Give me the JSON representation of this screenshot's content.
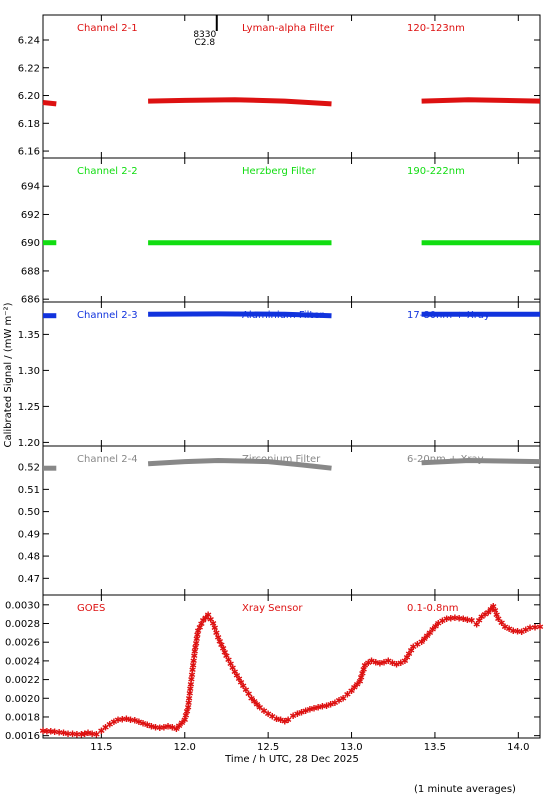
{
  "chart_data": {
    "type": "scatter",
    "x_axis": {
      "label": "Time / h UTC, 28 Dec 2025",
      "range": [
        11.15,
        14.13
      ],
      "ticks": [
        11.5,
        12.0,
        12.5,
        13.0,
        13.5,
        14.0
      ],
      "tick_labels": [
        "11.5",
        "12.0",
        "12.5",
        "13.0",
        "13.5",
        "14.0"
      ]
    },
    "shared_ylabel": "Calibrated Signal / (mW m⁻²)",
    "footnote": "(1 minute averages)",
    "marker_annotation": {
      "x": 12.12,
      "lines": [
        "8330",
        "C2.8"
      ]
    },
    "panels": [
      {
        "id": "ch2-1",
        "labels": [
          "Channel 2-1",
          "Lyman-alpha Filter",
          "120-123nm"
        ],
        "color": "#dd1111",
        "ylim": [
          6.155,
          6.258
        ],
        "yticks": [
          6.16,
          6.18,
          6.2,
          6.22,
          6.24
        ],
        "ytick_labels": [
          "6.16",
          "6.18",
          "6.20",
          "6.22",
          "6.24"
        ],
        "segments": [
          [
            [
              11.15,
              6.195
            ],
            [
              11.23,
              6.194
            ]
          ],
          [
            [
              11.78,
              6.196
            ],
            [
              12.0,
              6.1965
            ],
            [
              12.3,
              6.197
            ],
            [
              12.6,
              6.196
            ],
            [
              12.88,
              6.194
            ]
          ],
          [
            [
              13.42,
              6.196
            ],
            [
              13.7,
              6.197
            ],
            [
              14.13,
              6.196
            ]
          ]
        ]
      },
      {
        "id": "ch2-2",
        "labels": [
          "Channel 2-2",
          "Herzberg Filter",
          "190-222nm"
        ],
        "color": "#11dd11",
        "ylim": [
          685.8,
          696.0
        ],
        "yticks": [
          686,
          688,
          690,
          692,
          694
        ],
        "ytick_labels": [
          "686",
          "688",
          "690",
          "692",
          "694"
        ],
        "segments": [
          [
            [
              11.15,
              690.0
            ],
            [
              11.23,
              690.0
            ]
          ],
          [
            [
              11.78,
              690.0
            ],
            [
              12.88,
              690.0
            ]
          ],
          [
            [
              13.42,
              690.0
            ],
            [
              14.13,
              690.0
            ]
          ]
        ]
      },
      {
        "id": "ch2-3",
        "labels": [
          "Channel 2-3",
          "Aluminium Filter",
          "17-80nm + Xray"
        ],
        "color": "#1133dd",
        "ylim": [
          1.195,
          1.395
        ],
        "yticks": [
          1.2,
          1.25,
          1.3,
          1.35
        ],
        "ytick_labels": [
          "1.20",
          "1.25",
          "1.30",
          "1.35"
        ],
        "segments": [
          [
            [
              11.15,
              1.376
            ],
            [
              11.23,
              1.376
            ]
          ],
          [
            [
              11.78,
              1.378
            ],
            [
              12.2,
              1.3785
            ],
            [
              12.6,
              1.378
            ],
            [
              12.88,
              1.376
            ]
          ],
          [
            [
              13.42,
              1.378
            ],
            [
              14.13,
              1.378
            ]
          ]
        ]
      },
      {
        "id": "ch2-4",
        "labels": [
          "Channel 2-4",
          "Zirconium Filter",
          "6-20nm + Xray"
        ],
        "color": "#888888",
        "ylim": [
          0.4625,
          0.5295
        ],
        "yticks": [
          0.47,
          0.48,
          0.49,
          0.5,
          0.51,
          0.52
        ],
        "ytick_labels": [
          "0.47",
          "0.48",
          "0.49",
          "0.50",
          "0.51",
          "0.52"
        ],
        "segments": [
          [
            [
              11.15,
              0.5195
            ],
            [
              11.23,
              0.5195
            ]
          ],
          [
            [
              11.78,
              0.5215
            ],
            [
              12.0,
              0.5225
            ],
            [
              12.2,
              0.523
            ],
            [
              12.5,
              0.5225
            ],
            [
              12.7,
              0.521
            ],
            [
              12.88,
              0.5195
            ]
          ],
          [
            [
              13.42,
              0.522
            ],
            [
              13.7,
              0.523
            ],
            [
              14.13,
              0.5225
            ]
          ]
        ]
      },
      {
        "id": "goes",
        "labels": [
          "GOES",
          "Xray Sensor",
          "0.1-0.8nm"
        ],
        "color": "#dd1111",
        "ylim": [
          0.001575,
          0.003105
        ],
        "yticks": [
          0.0016,
          0.0018,
          0.002,
          0.0022,
          0.0024,
          0.0026,
          0.0028,
          0.003
        ],
        "ytick_labels": [
          "0.0016",
          "0.0018",
          "0.0020",
          "0.0022",
          "0.0024",
          "0.0026",
          "0.0028",
          "0.0030"
        ],
        "series": [
          [
            11.15,
            0.00165
          ],
          [
            11.22,
            0.00164
          ],
          [
            11.3,
            0.00162
          ],
          [
            11.38,
            0.00161
          ],
          [
            11.42,
            0.00163
          ],
          [
            11.47,
            0.00161
          ],
          [
            11.5,
            0.00165
          ],
          [
            11.55,
            0.00172
          ],
          [
            11.6,
            0.00177
          ],
          [
            11.65,
            0.00178
          ],
          [
            11.7,
            0.00176
          ],
          [
            11.75,
            0.00173
          ],
          [
            11.8,
            0.0017
          ],
          [
            11.85,
            0.00168
          ],
          [
            11.9,
            0.0017
          ],
          [
            11.95,
            0.00167
          ],
          [
            12.0,
            0.00177
          ],
          [
            12.02,
            0.0019
          ],
          [
            12.04,
            0.0022
          ],
          [
            12.06,
            0.0025
          ],
          [
            12.08,
            0.00272
          ],
          [
            12.11,
            0.00283
          ],
          [
            12.14,
            0.00289
          ],
          [
            12.17,
            0.0028
          ],
          [
            12.2,
            0.00265
          ],
          [
            12.25,
            0.00245
          ],
          [
            12.3,
            0.00228
          ],
          [
            12.35,
            0.00213
          ],
          [
            12.4,
            0.002
          ],
          [
            12.45,
            0.0019
          ],
          [
            12.5,
            0.00183
          ],
          [
            12.55,
            0.00178
          ],
          [
            12.6,
            0.00175
          ],
          [
            12.62,
            0.00177
          ],
          [
            12.65,
            0.00181
          ],
          [
            12.7,
            0.00185
          ],
          [
            12.75,
            0.00188
          ],
          [
            12.8,
            0.0019
          ],
          [
            12.85,
            0.00192
          ],
          [
            12.9,
            0.00195
          ],
          [
            12.95,
            0.002
          ],
          [
            13.0,
            0.00208
          ],
          [
            13.05,
            0.00218
          ],
          [
            13.08,
            0.00235
          ],
          [
            13.12,
            0.0024
          ],
          [
            13.17,
            0.00237
          ],
          [
            13.22,
            0.0024
          ],
          [
            13.27,
            0.00236
          ],
          [
            13.32,
            0.0024
          ],
          [
            13.37,
            0.00255
          ],
          [
            13.42,
            0.0026
          ],
          [
            13.47,
            0.0027
          ],
          [
            13.52,
            0.0028
          ],
          [
            13.57,
            0.00285
          ],
          [
            13.62,
            0.00286
          ],
          [
            13.67,
            0.00285
          ],
          [
            13.72,
            0.00283
          ],
          [
            13.75,
            0.00279
          ],
          [
            13.78,
            0.00287
          ],
          [
            13.82,
            0.00292
          ],
          [
            13.85,
            0.00298
          ],
          [
            13.88,
            0.00285
          ],
          [
            13.92,
            0.00276
          ],
          [
            13.97,
            0.00272
          ],
          [
            14.02,
            0.00271
          ],
          [
            14.07,
            0.00275
          ],
          [
            14.13,
            0.00276
          ]
        ]
      }
    ]
  }
}
